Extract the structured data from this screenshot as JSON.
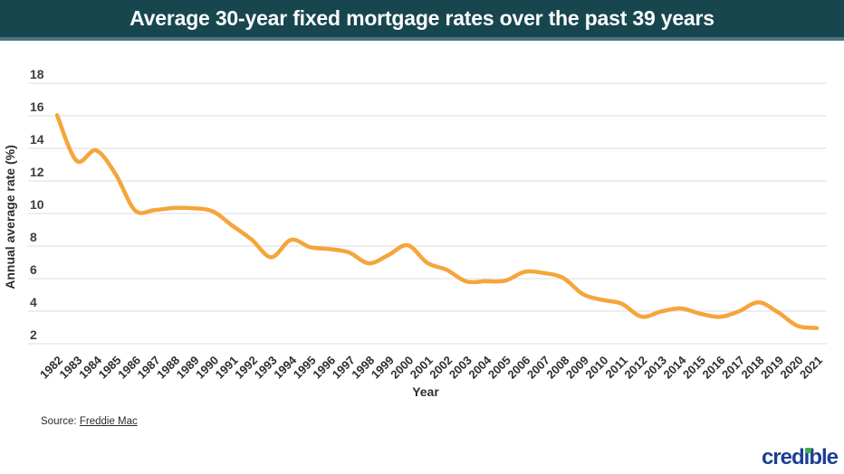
{
  "header": {
    "title": "Average 30-year fixed mortgage rates over the past 39 years",
    "bg_color": "#17464F",
    "border_color": "#4E757F",
    "text_color": "#FDFDFD"
  },
  "chart_data": {
    "type": "line",
    "title": "Average 30-year fixed mortgage rates over the past 39 years",
    "xlabel": "Year",
    "ylabel": "Annual average rate (%)",
    "ylim": [
      2,
      18
    ],
    "yticks": [
      2,
      4,
      6,
      8,
      10,
      12,
      14,
      16,
      18
    ],
    "grid": true,
    "legend": "none",
    "line_color": "#F5A53C",
    "grid_color": "#E3E3E3",
    "categories": [
      "1982",
      "1983",
      "1984",
      "1985",
      "1986",
      "1987",
      "1988",
      "1989",
      "1990",
      "1991",
      "1992",
      "1993",
      "1994",
      "1995",
      "1996",
      "1997",
      "1998",
      "1999",
      "2000",
      "2001",
      "2002",
      "2003",
      "2004",
      "2005",
      "2006",
      "2007",
      "2008",
      "2009",
      "2010",
      "2011",
      "2012",
      "2013",
      "2014",
      "2015",
      "2016",
      "2017",
      "2018",
      "2019",
      "2020",
      "2021"
    ],
    "values": [
      16.04,
      13.24,
      13.88,
      12.43,
      10.19,
      10.21,
      10.34,
      10.32,
      10.13,
      9.25,
      8.39,
      7.31,
      8.38,
      7.93,
      7.81,
      7.6,
      6.94,
      7.44,
      8.05,
      6.97,
      6.54,
      5.83,
      5.84,
      5.87,
      6.41,
      6.34,
      6.03,
      5.04,
      4.69,
      4.45,
      3.66,
      3.98,
      4.17,
      3.85,
      3.65,
      3.99,
      4.54,
      3.94,
      3.1,
      2.96
    ]
  },
  "source": {
    "prefix": "Source:",
    "link_text": "Freddie Mac"
  },
  "footer": {
    "logo_text": "credible",
    "logo_color": "#1B3F94",
    "logo_dot_color": "#3FAE49"
  }
}
